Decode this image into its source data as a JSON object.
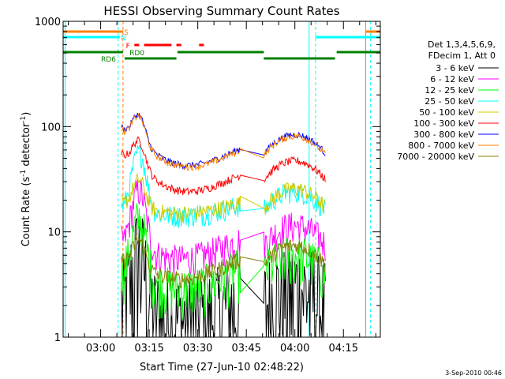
{
  "chart_data": {
    "type": "line",
    "title": "HESSI Observing Summary Count Rates",
    "xlabel": "Start Time (27-Jun-10 02:48:22)",
    "ylabel": "Count Rate (s⁻¹ detector⁻¹)",
    "ylabel_parts": {
      "main": "Count Rate (s",
      "sup1": "-1",
      "mid": " detector",
      "sup2": "-1",
      "end": ")"
    },
    "yscale": "log",
    "ylim": [
      1,
      1000
    ],
    "xlim_minutes": [
      0,
      98
    ],
    "x_tick_labels": [
      "03:00",
      "03:15",
      "03:30",
      "03:45",
      "04:00",
      "04:15"
    ],
    "x_tick_minutes": [
      11.6,
      26.6,
      41.6,
      56.6,
      71.6,
      86.6
    ],
    "y_tick_labels": [
      "1",
      "10",
      "100",
      "1000"
    ],
    "y_tick_values": [
      1,
      10,
      100,
      1000
    ],
    "legend_header": [
      "Det 1,3,4,5,6,9,",
      "FDecim 1, Att 0"
    ],
    "legend_position": "right",
    "footer_date": "3-Sep-2010 00:46",
    "series": [
      {
        "name": "3 - 6 keV",
        "color": "#000000",
        "baseline": 2.2,
        "noise": 0.55,
        "start": 18,
        "end": 81
      },
      {
        "name": "6 - 12 keV",
        "color": "#ff00ff",
        "baseline": 8.5,
        "noise": 0.12,
        "start": 18,
        "end": 81
      },
      {
        "name": "12 - 25 keV",
        "color": "#00ff00",
        "baseline": 4.5,
        "noise": 0.18,
        "start": 18,
        "end": 81
      },
      {
        "name": "25 - 50 keV",
        "color": "#00ffff",
        "baseline": 18,
        "noise": 0.08,
        "start": 18,
        "end": 81
      },
      {
        "name": "50 - 100 keV",
        "color": "#cccc00",
        "baseline": 19,
        "noise": 0.06,
        "start": 18,
        "end": 81
      },
      {
        "name": "100 - 300 keV",
        "color": "#ff0000",
        "baseline": 35,
        "noise": 0.03,
        "start": 18,
        "end": 81
      },
      {
        "name": "300 - 800 keV",
        "color": "#0000ff",
        "baseline": 62,
        "noise": 0.025,
        "start": 18,
        "end": 81
      },
      {
        "name": "800 - 7000 keV",
        "color": "#ff8000",
        "baseline": 60,
        "noise": 0.025,
        "start": 18,
        "end": 81
      },
      {
        "name": "7000 - 20000 keV",
        "color": "#808000",
        "baseline": 5.5,
        "noise": 0.06,
        "start": 18,
        "end": 81
      }
    ],
    "flags": [
      {
        "name": "S",
        "color": "#ff8000"
      },
      {
        "name": "N",
        "color": "#00ffff"
      },
      {
        "name": "F",
        "color": "#ff0000"
      },
      {
        "name": "RD0",
        "color": "#008000"
      },
      {
        "name": "RD6",
        "color": "#008000"
      }
    ]
  }
}
